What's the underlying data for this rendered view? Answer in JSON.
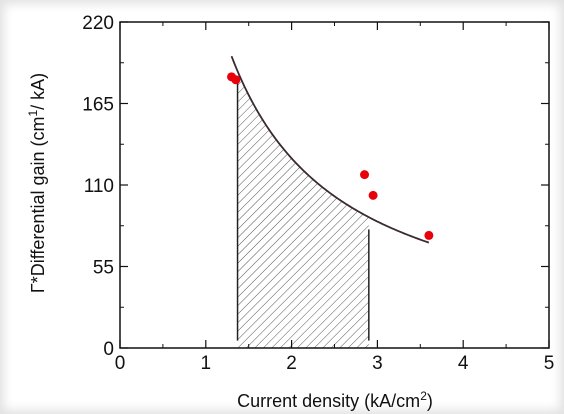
{
  "chart_data": {
    "type": "scatter",
    "xlabel": "Current density (kA/cm²)",
    "xlabel_parts": {
      "pre": "Current density (kA/cm",
      "sup": "2",
      "post": ")"
    },
    "ylabel": "Γ*Differential gain (cm¹/ kA)",
    "ylabel_parts": {
      "pre": "Γ*Differential gain (cm",
      "sup": "1",
      "post": "/ kA)"
    },
    "xlim": [
      0,
      5
    ],
    "ylim": [
      0,
      220
    ],
    "xticks": [
      0,
      1,
      2,
      3,
      4,
      5
    ],
    "yticks": [
      0,
      55,
      110,
      165,
      220
    ],
    "xtick_labels": [
      "0",
      "1",
      "2",
      "3",
      "4",
      "5"
    ],
    "ytick_labels": [
      "0",
      "55",
      "110",
      "165",
      "220"
    ],
    "grid": false,
    "point_color": "#e8000b",
    "curve_color": "#3a2a33",
    "series": [
      {
        "type": "scatter",
        "points": [
          {
            "x": 1.3,
            "y": 183
          },
          {
            "x": 1.35,
            "y": 181
          },
          {
            "x": 2.85,
            "y": 117
          },
          {
            "x": 2.95,
            "y": 103
          },
          {
            "x": 3.6,
            "y": 76
          }
        ]
      },
      {
        "type": "line",
        "fit": {
          "model": "a/x",
          "a": 256,
          "x_range": [
            1.3,
            3.6
          ]
        }
      }
    ],
    "shaded_region": {
      "x_range": [
        1.37,
        2.9
      ],
      "pattern": "diagonal-hatch"
    },
    "vertical_lines": [
      {
        "x": 1.37,
        "y_from": 5,
        "y_to": 181
      },
      {
        "x": 2.9,
        "y_from": 5,
        "y_to": 80
      }
    ]
  }
}
